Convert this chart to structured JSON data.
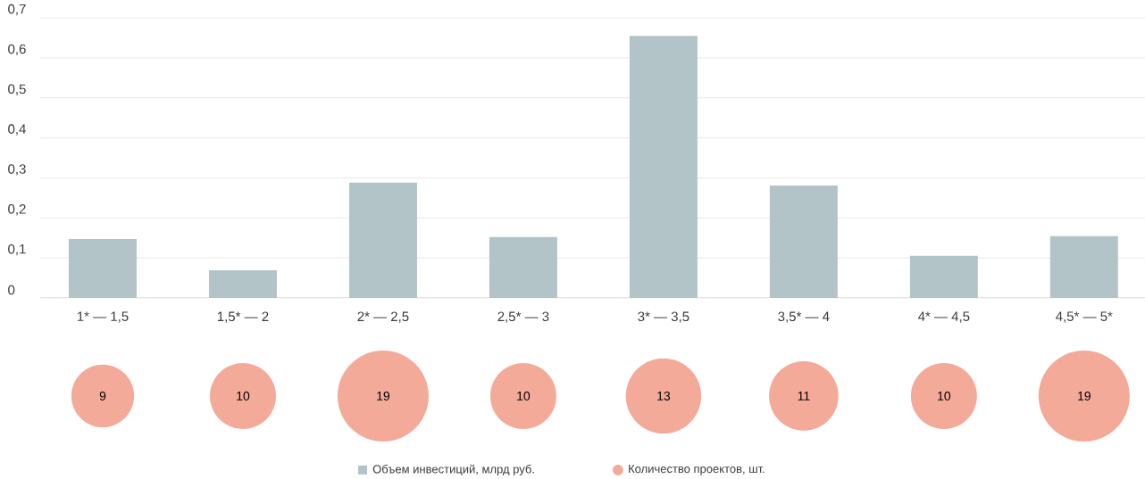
{
  "chart_data": [
    {
      "type": "bar",
      "categories": [
        "1* — 1,5",
        "1,5* — 2",
        "2* — 2,5",
        "2,5* — 3",
        "3* — 3,5",
        "3,5* — 4",
        "4* — 4,5",
        "4,5* — 5*"
      ],
      "series": [
        {
          "name": "Объем инвестиций, млрд руб.",
          "color": "#b2c4c8",
          "values": [
            0.147,
            0.069,
            0.288,
            0.152,
            0.655,
            0.281,
            0.105,
            0.154
          ]
        }
      ],
      "ylim": [
        0,
        0.7
      ],
      "yticks": [
        0,
        {
          "value": 0.1,
          "label": "0,1"
        },
        {
          "value": 0.2,
          "label": "0,2"
        },
        {
          "value": 0.3,
          "label": "0,3"
        },
        {
          "value": 0.4,
          "label": "0,4"
        },
        {
          "value": 0.5,
          "label": "0,5"
        },
        {
          "value": 0.6,
          "label": "0,6"
        },
        {
          "value": 0.7,
          "label": "0,7"
        }
      ],
      "grid": "y",
      "legend": "bottom"
    },
    {
      "type": "other",
      "categories": [
        null,
        null,
        null,
        null,
        null,
        null,
        null,
        null
      ],
      "series": [
        {
          "name": "Количество проектов, шт.",
          "color": "#f4aa98",
          "values": [
            9,
            10,
            19,
            10,
            13,
            11,
            10,
            19
          ]
        }
      ],
      "data_labels": true,
      "legend": "bottom"
    }
  ]
}
